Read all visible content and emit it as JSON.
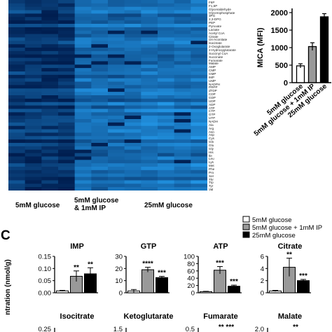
{
  "heatmap": {
    "groups": [
      "5mM glucose",
      "5mM glucose\n& 1mM IP",
      "25mM glucose"
    ],
    "group_line1": [
      "5mM glucose",
      "5mM glucose",
      "25mM glucose"
    ],
    "group_line2": [
      "",
      "& 1mM IP",
      ""
    ],
    "rows": [
      "F6P",
      "F1,6P",
      "Glyceraldehyde",
      "Glycerophosphate",
      "3PG",
      "2,3-DPG",
      "PEP",
      "Pyruvate",
      "Lactate",
      "Acetyl CoA",
      "Citrate",
      "cis-Aconitate",
      "Isocitrate",
      "2-Oxoglutarate",
      "2-Hydroxyglutarate",
      "Succinyl CoA",
      "Succinate",
      "Fumarate",
      "Malate",
      "AMP",
      "CMP",
      "GMP",
      "IMP",
      "UMP",
      "NADPH",
      "PRPP",
      "dTDP",
      "CDP",
      "GDP",
      "UDP",
      "ADP",
      "ATP",
      "CTP",
      "GTP",
      "UTP",
      "NADH",
      "Ala",
      "Arg",
      "Asn",
      "Asp",
      "Cys",
      "Gln",
      "Glu",
      "Gly",
      "His",
      "Ile",
      "Leu",
      "Lys",
      "Met",
      "Phe",
      "Pro",
      "Ser",
      "Thr",
      "Trp",
      "Tyr",
      "Val"
    ]
  },
  "chart_data": [
    {
      "type": "bar",
      "categories": [
        "5mM glucose",
        "5mM glucose + 1mM IP",
        "25mM glucose"
      ],
      "values": [
        480,
        1030,
        1880
      ],
      "errors": [
        60,
        110,
        90
      ],
      "ylabel": "MICA (MFI)",
      "ylim": [
        0,
        2000
      ],
      "yticks": [
        0,
        500,
        1000,
        1500,
        2000
      ],
      "colors": [
        "#ffffff",
        "#999999",
        "#000000"
      ]
    },
    {
      "type": "bar",
      "title": "IMP",
      "categories": [
        "5mM glucose",
        "5mM glucose + 1mM IP",
        "25mM glucose"
      ],
      "values": [
        0.008,
        0.068,
        0.078
      ],
      "errors": [
        0.002,
        0.022,
        0.025
      ],
      "significance": [
        "",
        "**",
        "**"
      ],
      "ylim": [
        0,
        0.15
      ],
      "yticks": [
        "0.00",
        "0.05",
        "0.10",
        "0.15"
      ],
      "colors": [
        "#ffffff",
        "#999999",
        "#000000"
      ]
    },
    {
      "type": "bar",
      "title": "GTP",
      "categories": [
        "5mM glucose",
        "5mM glucose + 1mM IP",
        "25mM glucose"
      ],
      "values": [
        1.5,
        19,
        12.5
      ],
      "errors": [
        1.2,
        2,
        1
      ],
      "significance": [
        "",
        "****",
        "***"
      ],
      "ylim": [
        0,
        30
      ],
      "yticks": [
        "0",
        "10",
        "20",
        "30"
      ],
      "colors": [
        "#ffffff",
        "#999999",
        "#000000"
      ]
    },
    {
      "type": "bar",
      "title": "ATP",
      "categories": [
        "5mM glucose",
        "5mM glucose + 1mM IP",
        "25mM glucose"
      ],
      "values": [
        3,
        62,
        18
      ],
      "errors": [
        1,
        10,
        3
      ],
      "significance": [
        "",
        "***",
        "***"
      ],
      "ylim": [
        0,
        100
      ],
      "yticks": [
        "0",
        "20",
        "40",
        "60",
        "80",
        "100"
      ],
      "colors": [
        "#ffffff",
        "#999999",
        "#000000"
      ]
    },
    {
      "type": "bar",
      "title": "Citrate",
      "categories": [
        "5mM glucose",
        "5mM glucose + 1mM IP",
        "25mM glucose"
      ],
      "values": [
        0.3,
        4.2,
        2.0
      ],
      "errors": [
        0.1,
        1.5,
        0.2
      ],
      "significance": [
        "",
        "**",
        "***"
      ],
      "ylim": [
        0,
        6
      ],
      "yticks": [
        "0",
        "2",
        "4",
        "6"
      ],
      "colors": [
        "#ffffff",
        "#999999",
        "#000000"
      ]
    }
  ],
  "legend": [
    "5mM glucose",
    "5mM glucose + 1mM IP",
    "25mM glucose"
  ],
  "panel_label": "C",
  "ylabel_partial": "ntration (nmol/g)",
  "bottom_row": {
    "titles": [
      "Isocitrate",
      "Ketoglutarate",
      "Fumarate",
      "Malate"
    ],
    "top_ticks": [
      "0.25",
      "1.5",
      "0.5",
      "2.0"
    ],
    "stars": [
      "",
      "",
      "**  ***",
      "**"
    ]
  }
}
